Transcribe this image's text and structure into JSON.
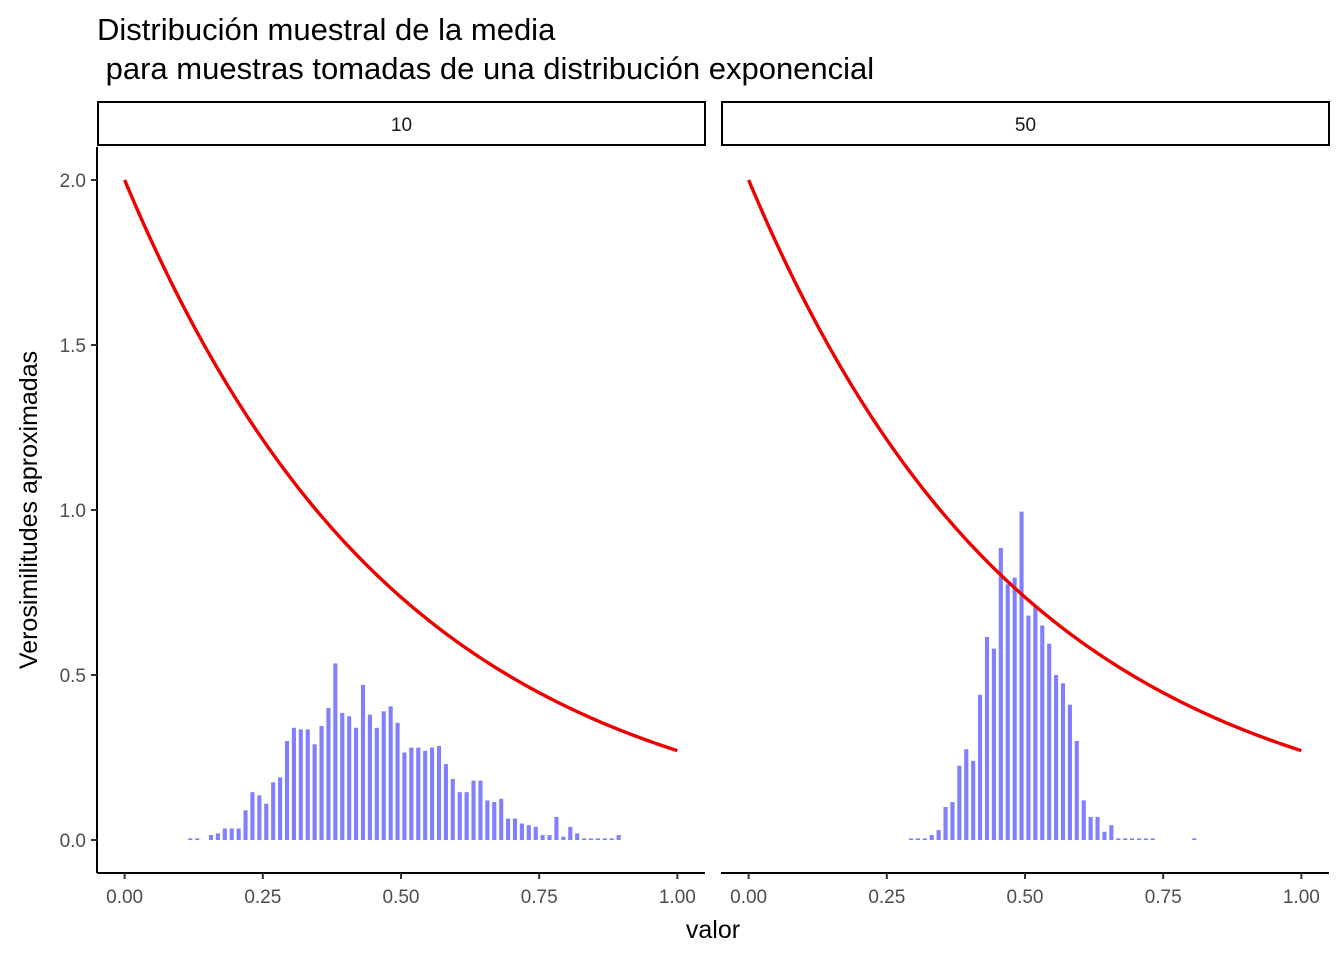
{
  "chart_data": {
    "type": "bar",
    "title_line1": "Distribución muestral de la media",
    "title_line2": " para muestras tomadas de una distribución exponencial",
    "xlabel": "valor",
    "ylabel": "Verosimilitudes aproximadas",
    "xlim": [
      -0.05,
      1.05
    ],
    "ylim": [
      -0.1,
      2.1
    ],
    "x_ticks": [
      0,
      0.25,
      0.5,
      0.75,
      1
    ],
    "x_tick_labels": [
      "0.00",
      "0.25",
      "0.50",
      "0.75",
      "1.00"
    ],
    "y_ticks": [
      0,
      0.5,
      1,
      1.5,
      2
    ],
    "y_tick_labels": [
      "0.0",
      "0.5",
      "1.0",
      "1.5",
      "2.0"
    ],
    "grid": false,
    "bin_width": 0.0125,
    "colors": {
      "bars": "#7f7fff",
      "density_curve": "#ee0000"
    },
    "density_curve": {
      "name": "exponential density",
      "rate": 2,
      "x_range": [
        0,
        1
      ]
    },
    "panels": [
      {
        "label": "10",
        "bin_start": 0.1125,
        "values": [
          0.005,
          0.005,
          0,
          0.015,
          0.02,
          0.035,
          0.035,
          0.035,
          0.09,
          0.145,
          0.135,
          0.11,
          0.175,
          0.19,
          0.3,
          0.34,
          0.335,
          0.335,
          0.29,
          0.345,
          0.4,
          0.535,
          0.385,
          0.375,
          0.34,
          0.47,
          0.38,
          0.34,
          0.39,
          0.405,
          0.355,
          0.265,
          0.28,
          0.28,
          0.27,
          0.28,
          0.285,
          0.23,
          0.185,
          0.145,
          0.145,
          0.18,
          0.18,
          0.12,
          0.115,
          0.125,
          0.065,
          0.065,
          0.05,
          0.045,
          0.04,
          0.015,
          0.015,
          0.07,
          0.01,
          0.04,
          0.02,
          0.005,
          0.005,
          0.005,
          0.005,
          0.005,
          0.015
        ]
      },
      {
        "label": "50",
        "bin_start": 0.2875,
        "values": [
          0.005,
          0.005,
          0.005,
          0.015,
          0.03,
          0.1,
          0.115,
          0.225,
          0.275,
          0.24,
          0.44,
          0.615,
          0.58,
          0.885,
          0.775,
          0.795,
          0.995,
          0.68,
          0.705,
          0.65,
          0.595,
          0.5,
          0.475,
          0.41,
          0.3,
          0.12,
          0.07,
          0.07,
          0.025,
          0.045,
          0.005,
          0.005,
          0.005,
          0.005,
          0.005,
          0.005,
          0,
          0,
          0,
          0,
          0,
          0.005
        ]
      }
    ]
  }
}
